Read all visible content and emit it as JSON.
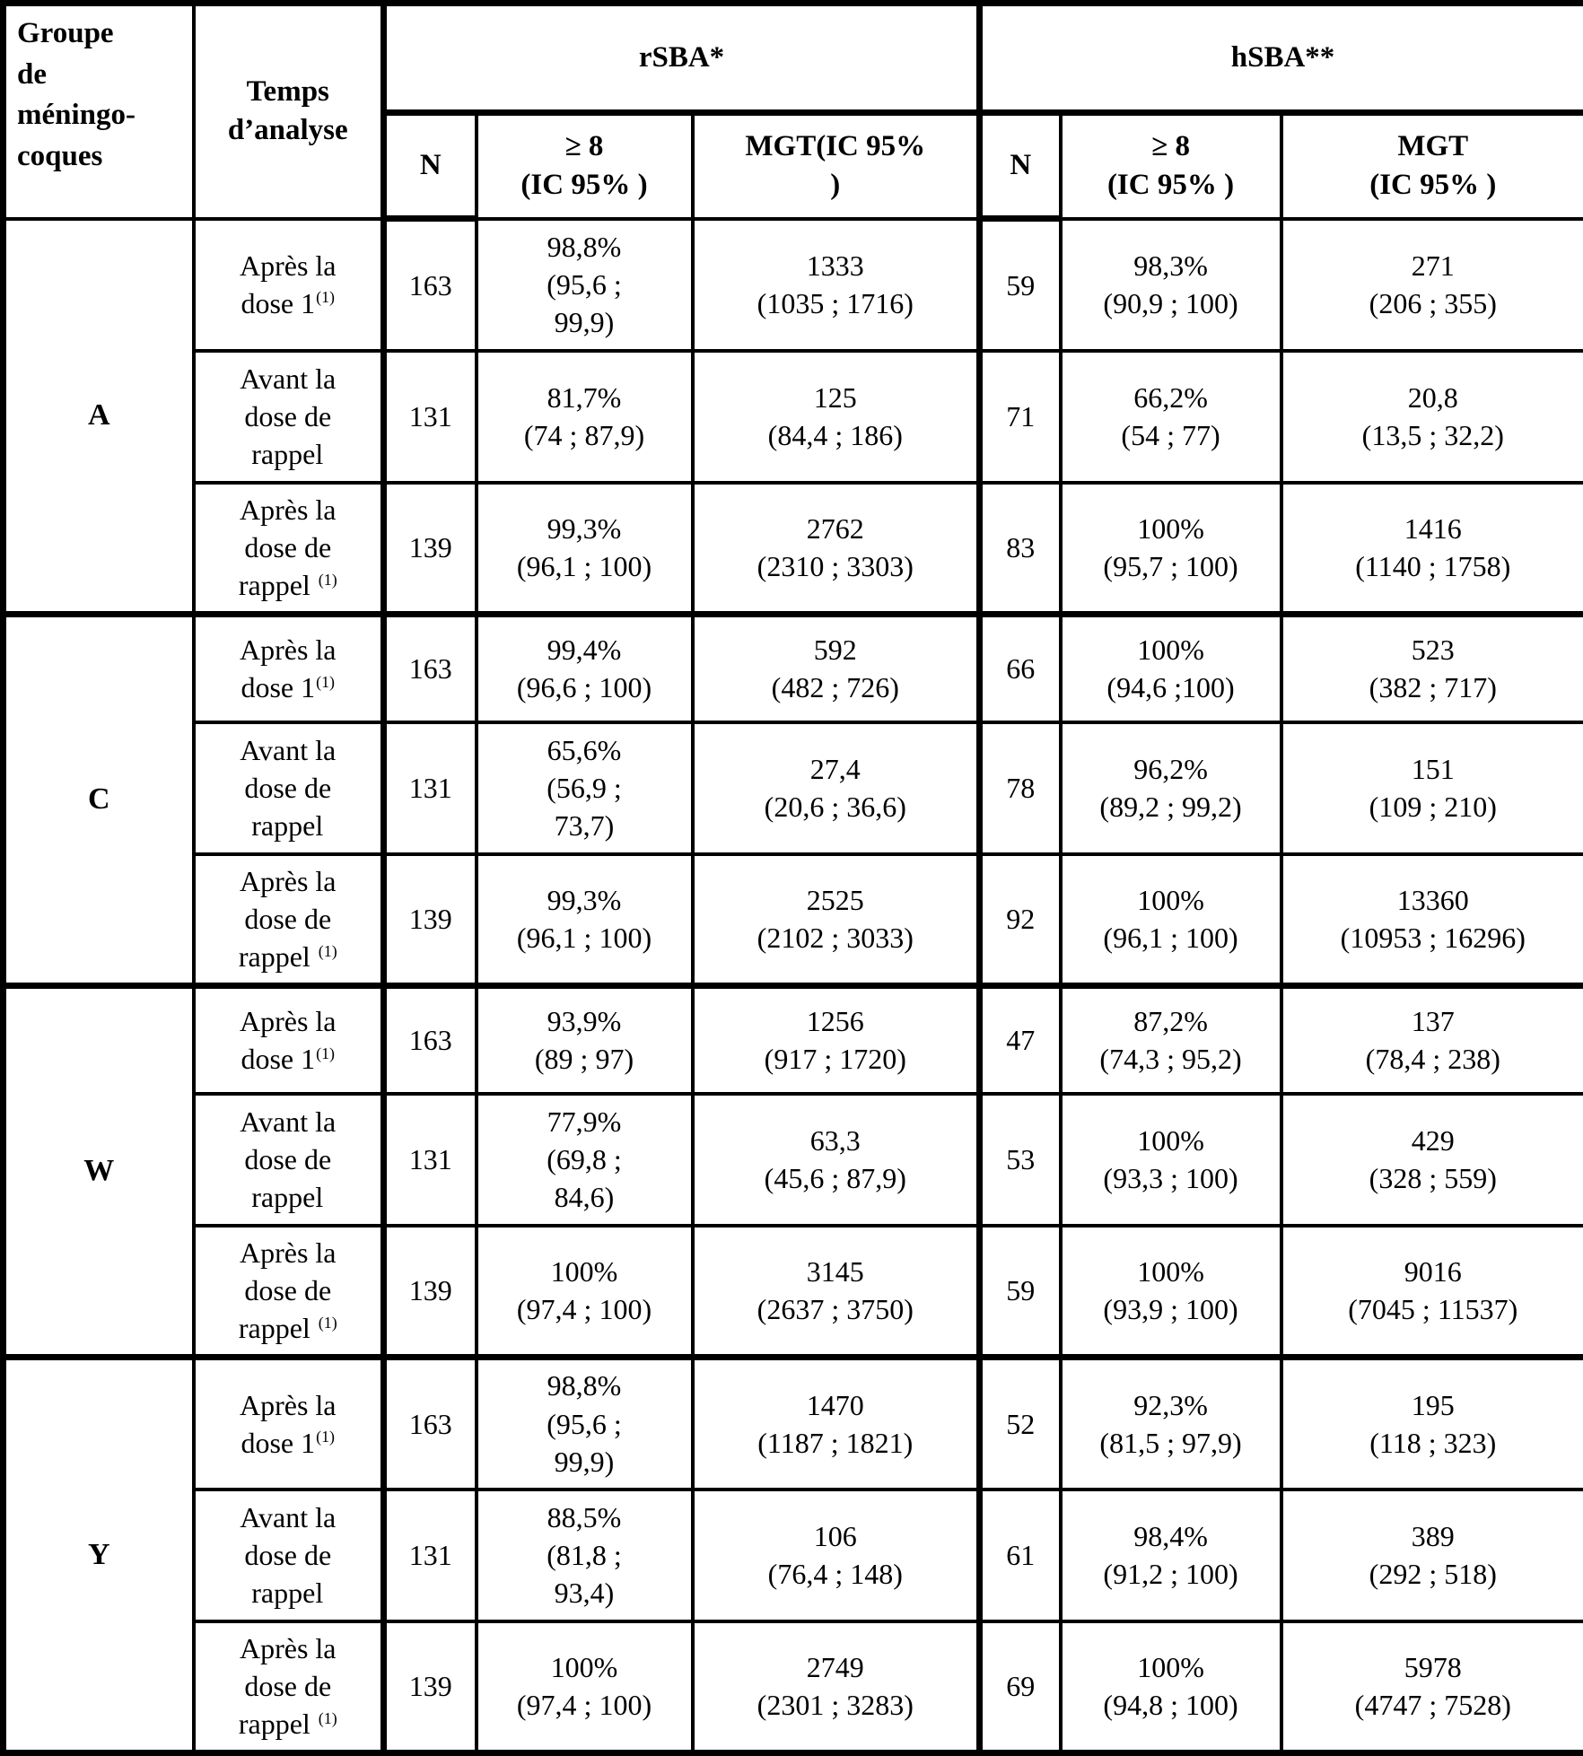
{
  "table": {
    "header": {
      "group_col": "Groupe\nde\nméningo-\ncoques",
      "time_col": "Temps\nd’analyse",
      "rsba": "rSBA*",
      "hsba": "hSBA**",
      "n": "N",
      "ge8": "≥ 8\n(IC 95% )",
      "rsba_mgt": "MGT(IC 95%\n)",
      "hsba_mgt": "MGT\n(IC 95% )"
    },
    "groups": [
      {
        "label": "A",
        "rows": [
          {
            "time": "Après la\ndose 1",
            "time_sup": "(1)",
            "rsba_n": "163",
            "rsba_ge8": "98,8%\n(95,6 ;\n99,9)",
            "rsba_mgt": "1333\n(1035 ; 1716)",
            "hsba_n": "59",
            "hsba_ge8": "98,3%\n(90,9 ; 100)",
            "hsba_mgt": "271\n(206 ; 355)"
          },
          {
            "time": "Avant la\ndose de\nrappel",
            "time_sup": "",
            "rsba_n": "131",
            "rsba_ge8": "81,7%\n(74 ; 87,9)",
            "rsba_mgt": "125\n(84,4 ; 186)",
            "hsba_n": "71",
            "hsba_ge8": "66,2%\n(54 ; 77)",
            "hsba_mgt": "20,8\n(13,5 ; 32,2)"
          },
          {
            "time": "Après la\ndose de\nrappel ",
            "time_sup": "(1)",
            "rsba_n": "139",
            "rsba_ge8": "99,3%\n(96,1 ; 100)",
            "rsba_mgt": "2762\n(2310 ; 3303)",
            "hsba_n": "83",
            "hsba_ge8": "100%\n(95,7 ; 100)",
            "hsba_mgt": "1416\n(1140 ; 1758)"
          }
        ]
      },
      {
        "label": "C",
        "rows": [
          {
            "time": "Après la\ndose 1",
            "time_sup": "(1)",
            "rsba_n": "163",
            "rsba_ge8": "99,4%\n(96,6 ; 100)",
            "rsba_mgt": "592\n(482 ; 726)",
            "hsba_n": "66",
            "hsba_ge8": "100%\n(94,6 ;100)",
            "hsba_mgt": "523\n(382 ; 717)"
          },
          {
            "time": "Avant la\ndose de\nrappel",
            "time_sup": "",
            "rsba_n": "131",
            "rsba_ge8": "65,6%\n(56,9 ;\n73,7)",
            "rsba_mgt": "27,4\n(20,6 ; 36,6)",
            "hsba_n": "78",
            "hsba_ge8": "96,2%\n(89,2 ; 99,2)",
            "hsba_mgt": "151\n(109 ; 210)"
          },
          {
            "time": "Après la\ndose de\nrappel ",
            "time_sup": "(1)",
            "rsba_n": "139",
            "rsba_ge8": "99,3%\n(96,1 ; 100)",
            "rsba_mgt": "2525\n(2102 ; 3033)",
            "hsba_n": "92",
            "hsba_ge8": "100%\n(96,1 ; 100)",
            "hsba_mgt": "13360\n(10953 ; 16296)"
          }
        ]
      },
      {
        "label": "W",
        "rows": [
          {
            "time": "Après la\ndose 1",
            "time_sup": "(1)",
            "rsba_n": "163",
            "rsba_ge8": "93,9%\n(89 ; 97)",
            "rsba_mgt": "1256\n(917 ; 1720)",
            "hsba_n": "47",
            "hsba_ge8": "87,2%\n(74,3 ; 95,2)",
            "hsba_mgt": "137\n(78,4 ; 238)"
          },
          {
            "time": "Avant la\ndose de\nrappel",
            "time_sup": "",
            "rsba_n": "131",
            "rsba_ge8": "77,9%\n(69,8 ;\n84,6)",
            "rsba_mgt": "63,3\n(45,6 ; 87,9)",
            "hsba_n": "53",
            "hsba_ge8": "100%\n(93,3 ; 100)",
            "hsba_mgt": "429\n(328 ; 559)"
          },
          {
            "time": "Après la\ndose de\nrappel ",
            "time_sup": "(1)",
            "rsba_n": "139",
            "rsba_ge8": "100%\n(97,4 ; 100)",
            "rsba_mgt": "3145\n(2637 ; 3750)",
            "hsba_n": "59",
            "hsba_ge8": "100%\n(93,9 ; 100)",
            "hsba_mgt": "9016\n(7045 ; 11537)"
          }
        ]
      },
      {
        "label": "Y",
        "rows": [
          {
            "time": "Après la\ndose 1",
            "time_sup": "(1)",
            "rsba_n": "163",
            "rsba_ge8": "98,8%\n(95,6 ;\n99,9)",
            "rsba_mgt": "1470\n(1187 ; 1821)",
            "hsba_n": "52",
            "hsba_ge8": "92,3%\n(81,5 ; 97,9)",
            "hsba_mgt": "195\n(118 ; 323)"
          },
          {
            "time": "Avant la\ndose de\nrappel",
            "time_sup": "",
            "rsba_n": "131",
            "rsba_ge8": "88,5%\n(81,8 ;\n93,4)",
            "rsba_mgt": "106\n(76,4 ; 148)",
            "hsba_n": "61",
            "hsba_ge8": "98,4%\n(91,2 ; 100)",
            "hsba_mgt": "389\n(292 ; 518)"
          },
          {
            "time": "Après la\ndose de\nrappel ",
            "time_sup": "(1)",
            "rsba_n": "139",
            "rsba_ge8": "100%\n(97,4 ; 100)",
            "rsba_mgt": "2749\n(2301 ; 3283)",
            "hsba_n": "69",
            "hsba_ge8": "100%\n(94,8 ; 100)",
            "hsba_mgt": "5978\n(4747 ; 7528)"
          }
        ]
      }
    ]
  }
}
